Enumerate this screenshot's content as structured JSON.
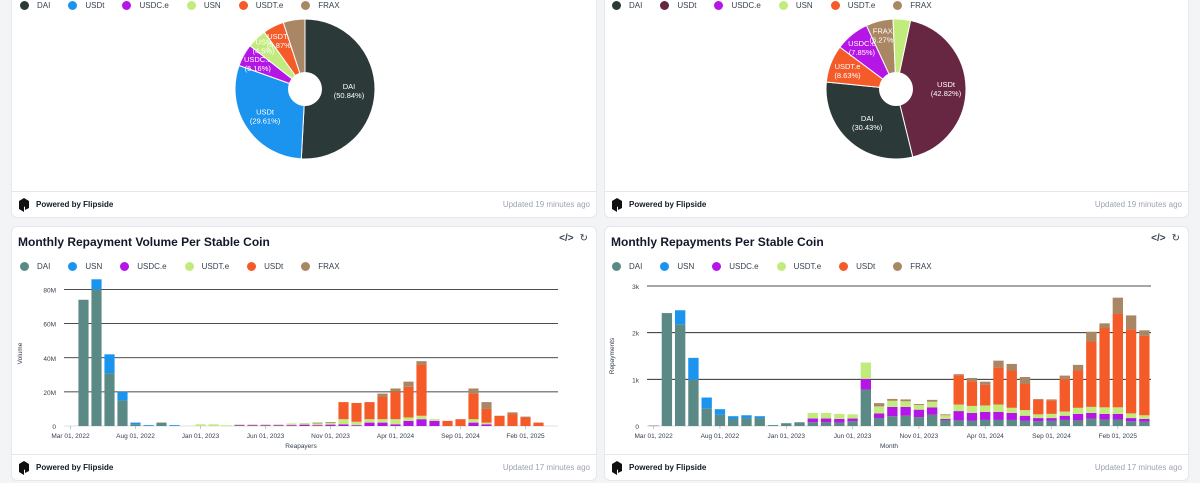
{
  "colors": {
    "DAI": "#2b3a38",
    "DAI_bar": "#5b8a86",
    "USDt": "#1a94ef",
    "USDC.e": "#b516e6",
    "USN": "#c2eb7e",
    "USDT.e": "#f55a29",
    "FRAX": "#aa8764",
    "USDt_right": "#672641",
    "USDt_bottomright": "#f55a29",
    "USDT.e_bottomright": "#c2eb7e"
  },
  "footer": {
    "brand": "Powered by Flipside",
    "updated_top": "Updated 19 minutes ago",
    "updated_bottom": "Updated 17 minutes ago"
  },
  "icons": {
    "code": "code-icon",
    "refresh": "refresh-icon",
    "flipside": "flipside-logo-icon"
  },
  "panels": {
    "top_left": {
      "legend": [
        "DAI",
        "USDt",
        "USDC.e",
        "USN",
        "USDT.e",
        "FRAX"
      ]
    },
    "top_right": {
      "legend": [
        "DAI",
        "USDt",
        "USDC.e",
        "USN",
        "USDT.e",
        "FRAX"
      ]
    },
    "bottom_left": {
      "title": "Monthly Repayment Volume Per Stable Coin",
      "legend": [
        "DAI",
        "USN",
        "USDC.e",
        "USDT.e",
        "USDt",
        "FRAX"
      ]
    },
    "bottom_right": {
      "title": "Monthly Repayments Per Stable Coin",
      "legend": [
        "DAI",
        "USN",
        "USDC.e",
        "USDT.e",
        "USDt",
        "FRAX"
      ]
    }
  },
  "chart_data": [
    {
      "type": "pie",
      "title": "",
      "slices": [
        {
          "name": "DAI",
          "value": 50.84,
          "label": "DAI",
          "pct": "(50.84%)"
        },
        {
          "name": "USDt",
          "value": 29.61,
          "label": "USDt",
          "pct": "(29.61%)"
        },
        {
          "name": "USDC.e",
          "value": 5.16,
          "label": "USDC.e",
          "pct": "(5.16%)"
        },
        {
          "name": "USN",
          "value": 4.5,
          "label": "USN",
          "pct": "(4.5%)"
        },
        {
          "name": "USDT.e",
          "value": 4.87,
          "label": "USDT.e",
          "pct": "(4.87%)"
        },
        {
          "name": "FRAX",
          "value": 5.02,
          "label": "",
          "pct": ""
        }
      ]
    },
    {
      "type": "pie",
      "title": "",
      "slices": [
        {
          "name": "USDt",
          "value": 42.82,
          "label": "USDt",
          "pct": "(42.82%)"
        },
        {
          "name": "DAI",
          "value": 30.43,
          "label": "DAI",
          "pct": "(30.43%)"
        },
        {
          "name": "USDT.e",
          "value": 8.63,
          "label": "USDT.e",
          "pct": "(8.63%)"
        },
        {
          "name": "USDC.e",
          "value": 7.85,
          "label": "USDC.e",
          "pct": "(7.85%)"
        },
        {
          "name": "FRAX",
          "value": 6.27,
          "label": "FRAX",
          "pct": "(6.27%)"
        },
        {
          "name": "USN",
          "value": 4.0,
          "label": "",
          "pct": ""
        }
      ]
    },
    {
      "type": "bar",
      "stacked": true,
      "title": "Monthly Repayment Volume Per Stable Coin",
      "xlabel": "Reapayers",
      "ylabel": "Volume",
      "ylim": [
        0,
        85000000
      ],
      "yticks": [
        0,
        20000000,
        40000000,
        60000000,
        80000000
      ],
      "ytick_labels": [
        "0",
        "20M",
        "40M",
        "60M",
        "80M"
      ],
      "xtick_labels": [
        "Mar 01, 2022",
        "Aug 01, 2022",
        "Jan 01, 2023",
        "Jun 01, 2023",
        "Nov 01, 2023",
        "Apr 01, 2024",
        "Sep 01, 2024",
        "Feb 01, 2025"
      ],
      "xtick_index": [
        0,
        5,
        10,
        15,
        20,
        25,
        30,
        35
      ],
      "series_order": [
        "DAI",
        "USN",
        "USDC.e",
        "USDT.e",
        "USDt",
        "FRAX"
      ],
      "months": 38,
      "series": [
        {
          "name": "DAI",
          "values": [
            0,
            74,
            80,
            31,
            15,
            1,
            0,
            2,
            0,
            0,
            0,
            0,
            0,
            0,
            0,
            0,
            0,
            0,
            0,
            0,
            0,
            0,
            0,
            0,
            0,
            0,
            0,
            0,
            0,
            0,
            0,
            0,
            0,
            0,
            0,
            0,
            0,
            0
          ]
        },
        {
          "name": "USN",
          "values": [
            0,
            0,
            6,
            11,
            5,
            1,
            0.5,
            0,
            0.5,
            0,
            0,
            0,
            0,
            0,
            0,
            0,
            0,
            0,
            0,
            0,
            0,
            0,
            0,
            0,
            0,
            0,
            0,
            0,
            0,
            0,
            0,
            0,
            0,
            0,
            0,
            0,
            0,
            0
          ]
        },
        {
          "name": "USDC.e",
          "values": [
            0,
            0,
            0,
            0,
            0,
            0,
            0,
            0,
            0,
            0,
            0,
            0,
            0,
            0.5,
            0.5,
            0.5,
            0.5,
            0.5,
            0.8,
            0.5,
            0.8,
            1,
            0.5,
            2,
            2,
            1,
            3,
            4,
            3,
            0,
            0,
            2,
            1,
            0,
            0,
            0,
            0,
            0
          ]
        },
        {
          "name": "USDT.e",
          "values": [
            0,
            0,
            0,
            0,
            0,
            0,
            0,
            0,
            0,
            0,
            1,
            1,
            0.5,
            0.5,
            0.5,
            0.5,
            0.5,
            1,
            1,
            1,
            1,
            3,
            2,
            2,
            2,
            3,
            2,
            2,
            1,
            0,
            0,
            2,
            1,
            0,
            0,
            0,
            0,
            0
          ]
        },
        {
          "name": "USDt",
          "values": [
            0,
            0,
            0,
            0,
            0,
            0,
            0,
            0,
            0,
            0,
            0,
            0,
            0,
            0,
            0,
            0,
            0,
            0,
            0,
            0,
            0,
            10,
            11,
            10,
            13,
            16,
            18,
            30,
            0,
            3,
            4,
            15,
            8,
            6,
            7,
            5,
            2,
            0
          ]
        },
        {
          "name": "FRAX",
          "values": [
            0,
            0,
            0,
            0,
            0,
            0,
            0,
            0,
            0,
            0,
            0,
            0,
            0,
            0,
            0,
            0,
            0,
            0,
            0,
            0.5,
            0.5,
            0,
            0,
            0,
            2,
            2,
            3,
            2,
            0,
            0,
            0,
            3,
            4,
            0,
            1,
            0.5,
            0,
            0
          ]
        }
      ]
    },
    {
      "type": "bar",
      "stacked": true,
      "title": "Monthly Repayments Per Stable Coin",
      "xlabel": "Month",
      "ylabel": "Repayments",
      "ylim": [
        0,
        3000
      ],
      "yticks": [
        0,
        1000,
        2000,
        3000
      ],
      "ytick_labels": [
        "0",
        "1k",
        "2k",
        "3k"
      ],
      "xtick_labels": [
        "Mar 01, 2022",
        "Aug 01, 2022",
        "Jan 01, 2023",
        "Jun 01, 2023",
        "Nov 01, 2023",
        "Apr 01, 2024",
        "Sep 01, 2024",
        "Feb 01, 2025"
      ],
      "xtick_index": [
        0,
        5,
        10,
        15,
        20,
        25,
        30,
        35
      ],
      "series_order": [
        "DAI",
        "USN",
        "USDC.e",
        "USDT.e",
        "USDt",
        "FRAX"
      ],
      "months": 38,
      "series": [
        {
          "name": "DAI",
          "values": [
            10,
            2420,
            2180,
            990,
            380,
            240,
            150,
            170,
            170,
            20,
            60,
            80,
            80,
            80,
            70,
            100,
            780,
            170,
            210,
            220,
            190,
            240,
            120,
            120,
            110,
            130,
            130,
            130,
            110,
            100,
            110,
            130,
            120,
            160,
            140,
            140,
            100,
            90
          ]
        },
        {
          "name": "USN",
          "values": [
            0,
            0,
            300,
            470,
            230,
            120,
            60,
            60,
            40,
            0,
            0,
            0,
            0,
            0,
            0,
            0,
            0,
            0,
            0,
            0,
            0,
            0,
            0,
            0,
            0,
            0,
            0,
            0,
            0,
            0,
            0,
            0,
            0,
            0,
            0,
            0,
            0,
            0
          ]
        },
        {
          "name": "USDC.e",
          "values": [
            0,
            0,
            0,
            0,
            0,
            0,
            0,
            0,
            0,
            0,
            0,
            0,
            80,
            80,
            80,
            60,
            230,
            100,
            200,
            190,
            160,
            160,
            30,
            200,
            170,
            170,
            170,
            150,
            110,
            70,
            60,
            90,
            140,
            120,
            120,
            120,
            70,
            60
          ]
        },
        {
          "name": "USDT.e",
          "values": [
            0,
            0,
            0,
            0,
            0,
            0,
            0,
            0,
            0,
            0,
            0,
            0,
            120,
            120,
            110,
            90,
            350,
            150,
            130,
            120,
            100,
            120,
            80,
            140,
            150,
            140,
            160,
            110,
            120,
            80,
            90,
            90,
            130,
            130,
            140,
            140,
            100,
            80
          ]
        },
        {
          "name": "USDt",
          "values": [
            0,
            0,
            0,
            0,
            0,
            0,
            0,
            0,
            0,
            0,
            0,
            0,
            0,
            0,
            0,
            0,
            0,
            0,
            0,
            0,
            0,
            0,
            0,
            630,
            530,
            440,
            800,
            800,
            560,
            310,
            290,
            700,
            800,
            1400,
            1700,
            2000,
            1800,
            1700
          ]
        },
        {
          "name": "FRAX",
          "values": [
            0,
            0,
            0,
            0,
            0,
            0,
            0,
            0,
            0,
            0,
            0,
            0,
            0,
            0,
            0,
            0,
            0,
            70,
            40,
            40,
            20,
            40,
            20,
            20,
            70,
            70,
            140,
            140,
            150,
            20,
            20,
            70,
            120,
            210,
            100,
            350,
            300,
            120
          ]
        }
      ]
    }
  ]
}
